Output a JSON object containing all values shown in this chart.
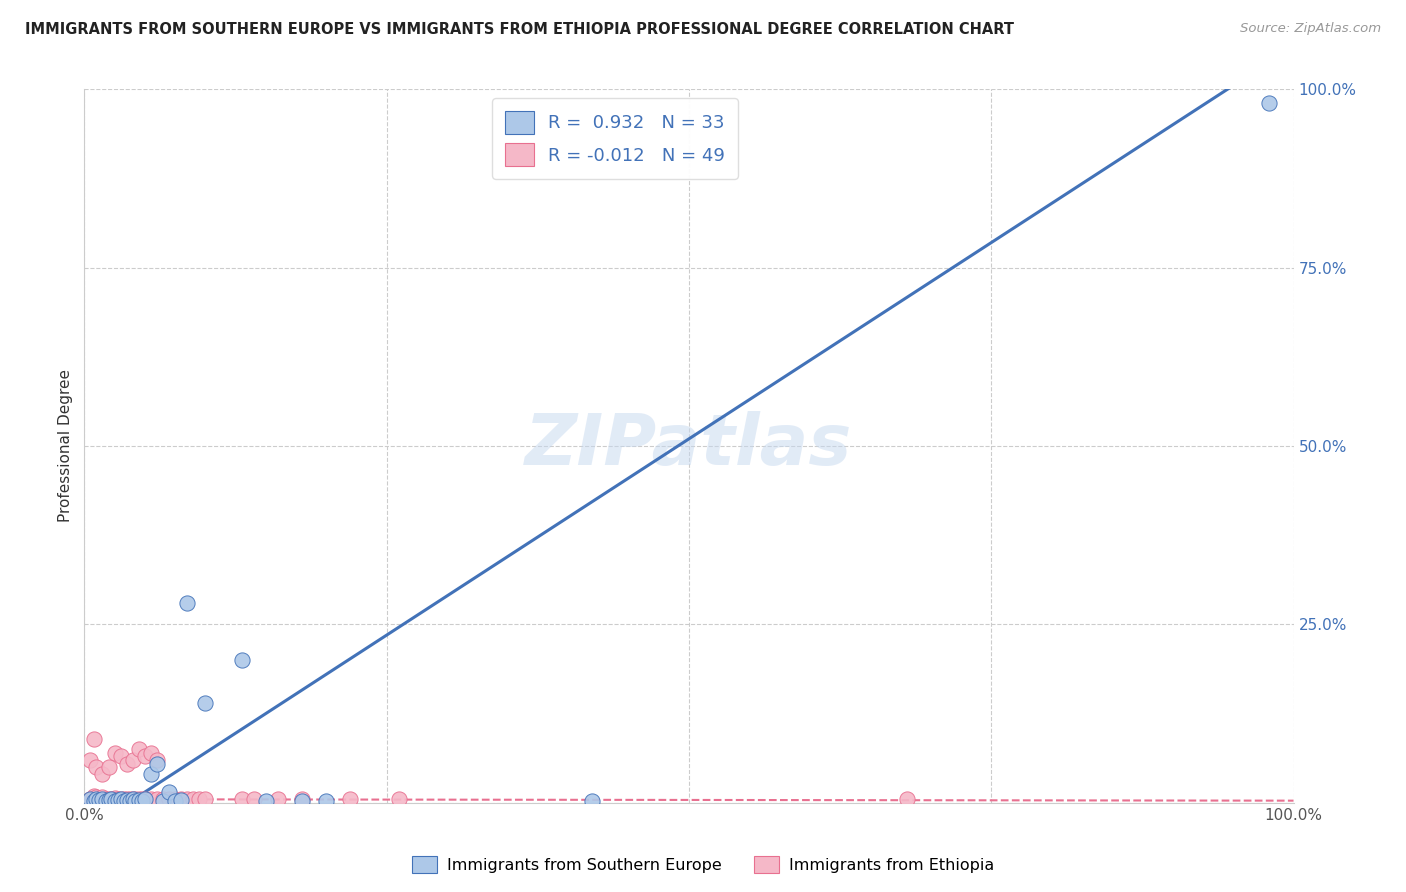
{
  "title": "IMMIGRANTS FROM SOUTHERN EUROPE VS IMMIGRANTS FROM ETHIOPIA PROFESSIONAL DEGREE CORRELATION CHART",
  "source": "Source: ZipAtlas.com",
  "ylabel": "Professional Degree",
  "xlim": [
    0,
    1.0
  ],
  "ylim": [
    0,
    1.0
  ],
  "watermark": "ZIPatlas",
  "blue_R": "0.932",
  "blue_N": "33",
  "pink_R": "-0.012",
  "pink_N": "49",
  "blue_color": "#adc8e8",
  "pink_color": "#f5b8c8",
  "blue_line_color": "#4272b8",
  "pink_line_color": "#e87090",
  "grid_color": "#cccccc",
  "background_color": "#ffffff",
  "blue_scatter_x": [
    0.005,
    0.008,
    0.01,
    0.012,
    0.015,
    0.018,
    0.02,
    0.022,
    0.025,
    0.028,
    0.03,
    0.033,
    0.035,
    0.038,
    0.04,
    0.042,
    0.045,
    0.048,
    0.05,
    0.055,
    0.06,
    0.065,
    0.07,
    0.075,
    0.08,
    0.1,
    0.13,
    0.15,
    0.18,
    0.2,
    0.085,
    0.42,
    0.98
  ],
  "blue_scatter_y": [
    0.005,
    0.003,
    0.006,
    0.004,
    0.005,
    0.003,
    0.004,
    0.006,
    0.003,
    0.004,
    0.005,
    0.003,
    0.004,
    0.002,
    0.005,
    0.003,
    0.004,
    0.003,
    0.005,
    0.04,
    0.055,
    0.003,
    0.015,
    0.003,
    0.004,
    0.14,
    0.2,
    0.003,
    0.003,
    0.003,
    0.28,
    0.003,
    0.98
  ],
  "pink_scatter_x": [
    0.005,
    0.008,
    0.01,
    0.012,
    0.015,
    0.018,
    0.02,
    0.022,
    0.025,
    0.028,
    0.03,
    0.033,
    0.035,
    0.038,
    0.04,
    0.042,
    0.045,
    0.048,
    0.05,
    0.055,
    0.06,
    0.065,
    0.07,
    0.075,
    0.08,
    0.085,
    0.09,
    0.095,
    0.1,
    0.13,
    0.14,
    0.16,
    0.18,
    0.22,
    0.26,
    0.005,
    0.008,
    0.01,
    0.015,
    0.02,
    0.025,
    0.03,
    0.035,
    0.04,
    0.045,
    0.05,
    0.055,
    0.06,
    0.68
  ],
  "pink_scatter_y": [
    0.005,
    0.01,
    0.008,
    0.005,
    0.008,
    0.005,
    0.006,
    0.005,
    0.007,
    0.005,
    0.006,
    0.005,
    0.005,
    0.005,
    0.005,
    0.005,
    0.005,
    0.005,
    0.005,
    0.005,
    0.005,
    0.005,
    0.005,
    0.005,
    0.005,
    0.005,
    0.005,
    0.005,
    0.005,
    0.005,
    0.005,
    0.005,
    0.005,
    0.005,
    0.005,
    0.06,
    0.09,
    0.05,
    0.04,
    0.05,
    0.07,
    0.065,
    0.055,
    0.06,
    0.075,
    0.065,
    0.07,
    0.06,
    0.005
  ],
  "blue_line_x": [
    0.0,
    1.0
  ],
  "blue_line_y": [
    -0.04,
    1.06
  ],
  "pink_line_x": [
    0.0,
    1.0
  ],
  "pink_line_y": [
    0.005,
    0.003
  ]
}
